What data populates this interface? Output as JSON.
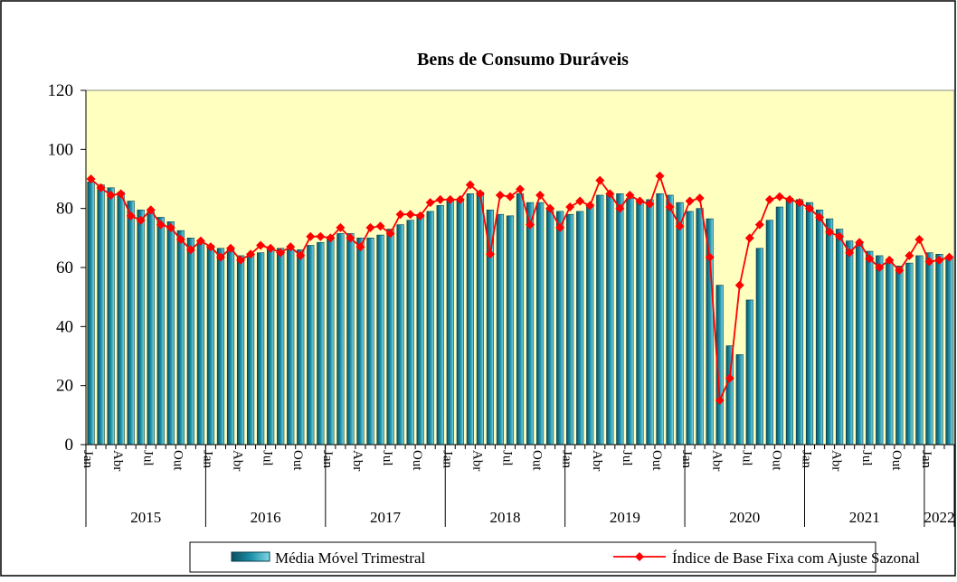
{
  "chart_data": {
    "type": "bar-line",
    "title": "Bens de Consumo  Duráveis",
    "categories": [
      "Jan",
      null,
      null,
      "Abr",
      null,
      null,
      "Jul",
      null,
      null,
      "Out",
      null,
      null,
      "Jan",
      null,
      null,
      "Abr",
      null,
      null,
      "Jul",
      null,
      null,
      "Out",
      null,
      null,
      "Jan",
      null,
      null,
      "Abr",
      null,
      null,
      "Jul",
      null,
      null,
      "Out",
      null,
      null,
      "Jan",
      null,
      null,
      "Abr",
      null,
      null,
      "Jul",
      null,
      null,
      "Out",
      null,
      null,
      "Jan",
      null,
      null,
      "Abr",
      null,
      null,
      "Jul",
      null,
      null,
      "Out",
      null,
      null,
      "Jan",
      null,
      null,
      "Abr",
      null,
      null,
      "Jul",
      null,
      null,
      "Out",
      null,
      null,
      "Jan",
      null,
      null,
      "Abr",
      null,
      null,
      "Jul",
      null,
      null,
      "Out",
      null,
      null,
      "Jan",
      null,
      null
    ],
    "years": [
      "2015",
      "2016",
      "2017",
      "2018",
      "2019",
      "2020",
      "2021",
      "2022"
    ],
    "series": [
      {
        "name": "Média Móvel Trimestral",
        "type": "bar",
        "color": "#1b8ea6",
        "values": [
          89,
          88,
          87,
          85.5,
          82.5,
          79.5,
          79,
          77,
          75.5,
          72.5,
          70,
          68.5,
          67.5,
          66.5,
          66,
          64,
          64.5,
          65,
          66,
          66.5,
          66,
          66,
          67.5,
          68.5,
          70.5,
          71.5,
          71.5,
          70,
          70,
          71,
          73,
          74.5,
          76,
          78,
          79,
          81,
          83,
          83,
          85,
          85.5,
          79.5,
          78,
          77.5,
          85,
          82,
          82,
          80,
          79,
          78,
          79,
          81.5,
          84.5,
          85,
          85,
          83.5,
          82.5,
          83,
          85,
          84.5,
          82,
          79,
          80,
          76.5,
          54,
          33.5,
          30.5,
          49,
          66.5,
          76,
          80.5,
          83.5,
          83,
          82,
          79.5,
          76.5,
          73,
          69,
          68,
          65.5,
          64,
          62,
          60.5,
          61.5,
          64,
          65,
          64.5,
          63
        ]
      },
      {
        "name": "Índice de Base Fixa com Ajuste Sazonal",
        "type": "line",
        "color": "#ff0000",
        "values": [
          90,
          87,
          84.5,
          85,
          77.5,
          76,
          79.5,
          74.5,
          73.5,
          69.5,
          66,
          69,
          67,
          63.5,
          66.5,
          62.5,
          64.5,
          67.5,
          66.5,
          65,
          67,
          64,
          70.5,
          70.5,
          70,
          73.5,
          70,
          67,
          73.5,
          74,
          71.5,
          78,
          78,
          77.5,
          82,
          83,
          83,
          83,
          88,
          85,
          64.5,
          84.5,
          84,
          86.5,
          74.5,
          84.5,
          80,
          73.5,
          80.5,
          82.5,
          81,
          89.5,
          85,
          80,
          84.5,
          82.5,
          81.5,
          91,
          80.5,
          74,
          82.5,
          83.5,
          63.5,
          15,
          22.5,
          54,
          70,
          74.5,
          83,
          84,
          83,
          82,
          80,
          77,
          72,
          70.5,
          65,
          68.5,
          63,
          60,
          62.5,
          59,
          64,
          69.5,
          62,
          62.5,
          63.5
        ]
      }
    ],
    "ylim": [
      0,
      120
    ],
    "yticks": [
      0,
      20,
      40,
      60,
      80,
      100,
      120
    ],
    "plot_background": "#ffffc0",
    "legend": "bottom"
  }
}
